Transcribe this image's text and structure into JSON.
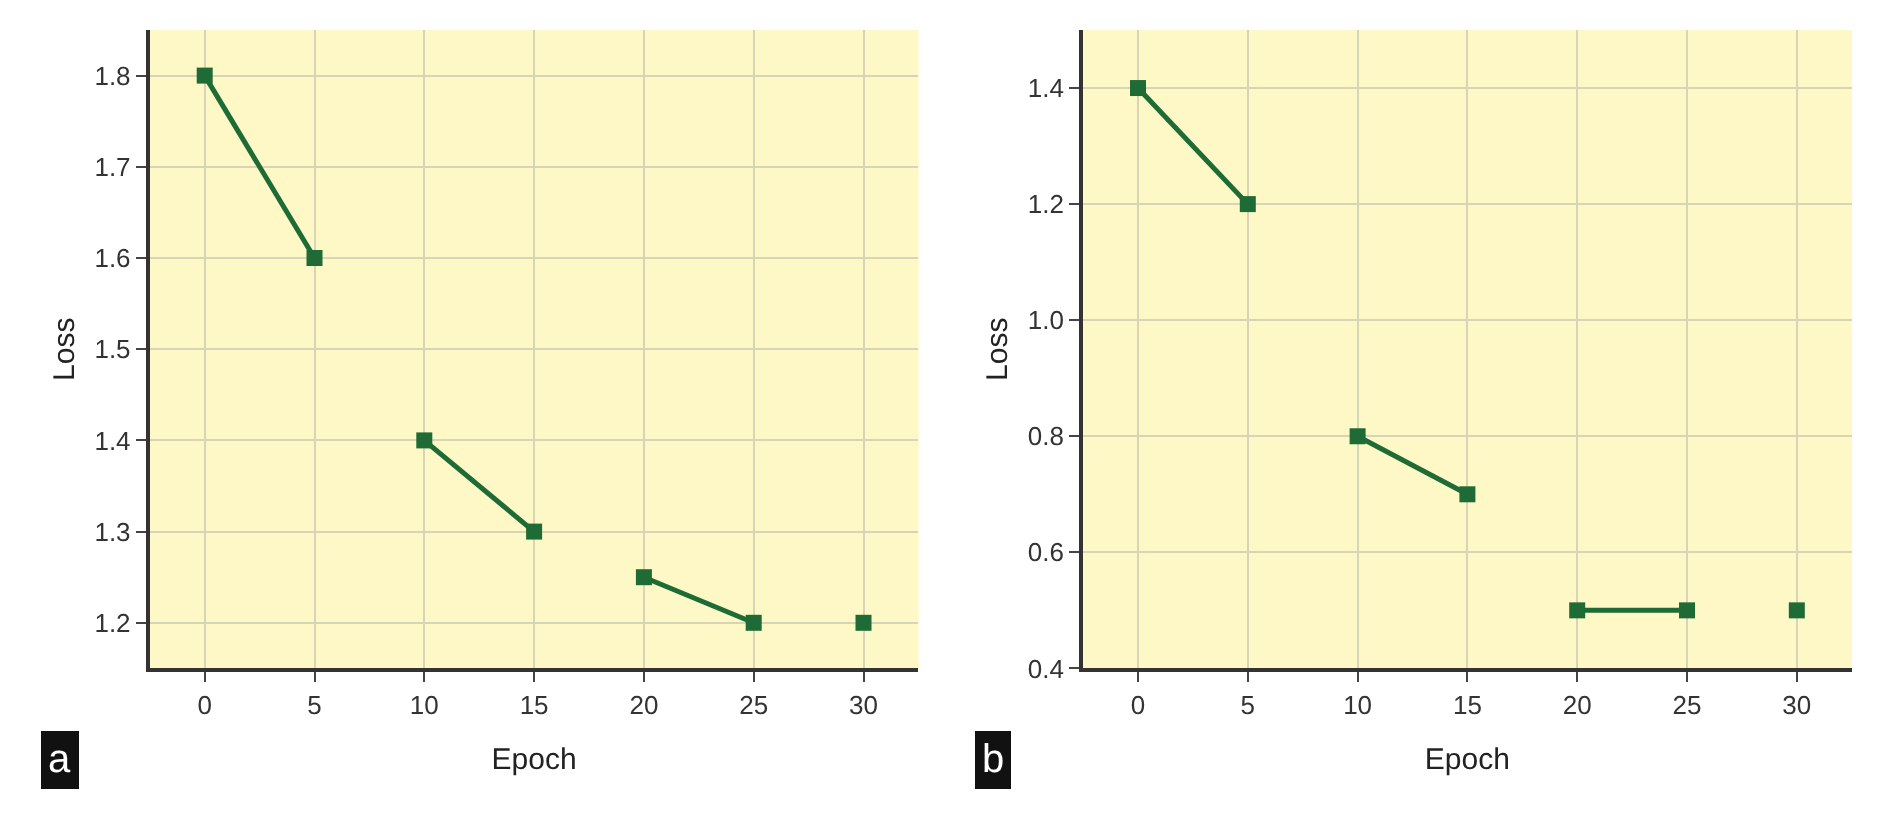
{
  "chart_data": [
    {
      "type": "line",
      "xlabel": "Epoch",
      "ylabel": "Loss",
      "annotations": [
        "a"
      ],
      "marker": "square",
      "line_style": "solid",
      "grid": true,
      "xlim": [
        -2.5,
        32.5
      ],
      "xticks": [
        0,
        5,
        10,
        15,
        20,
        25,
        30
      ],
      "ylim": [
        1.15,
        1.85
      ],
      "yticks": [
        1.2,
        1.3,
        1.4,
        1.5,
        1.6,
        1.7,
        1.8
      ],
      "series": [
        {
          "color": "#1e6b35",
          "x": [
            0,
            5
          ],
          "values": [
            1.8,
            1.6
          ]
        },
        {
          "color": "#1e6b35",
          "x": [
            10,
            15
          ],
          "values": [
            1.4,
            1.3
          ]
        },
        {
          "color": "#1e6b35",
          "x": [
            20,
            25
          ],
          "values": [
            1.25,
            1.2
          ]
        },
        {
          "color": "#1e6b35",
          "x": [
            30
          ],
          "values": [
            1.2
          ]
        }
      ]
    },
    {
      "type": "line",
      "xlabel": "Epoch",
      "ylabel": "Loss",
      "annotations": [
        "b"
      ],
      "marker": "square",
      "line_style": "solid",
      "grid": true,
      "xlim": [
        -2.5,
        32.5
      ],
      "xticks": [
        0,
        5,
        10,
        15,
        20,
        25,
        30
      ],
      "ylim": [
        0.4,
        1.5
      ],
      "yticks": [
        0.4,
        0.6,
        0.8,
        {
          "value": 1,
          "label": "1.0"
        },
        1.2,
        1.4
      ],
      "series": [
        {
          "color": "#1e6b35",
          "x": [
            0,
            5
          ],
          "values": [
            1.4,
            1.2
          ]
        },
        {
          "color": "#1e6b35",
          "x": [
            10,
            15
          ],
          "values": [
            0.8,
            0.7
          ]
        },
        {
          "color": "#1e6b35",
          "x": [
            20,
            25
          ],
          "values": [
            0.5,
            0.5
          ]
        },
        {
          "color": "#1e6b35",
          "x": [
            30
          ],
          "values": [
            0.5
          ]
        }
      ]
    }
  ]
}
